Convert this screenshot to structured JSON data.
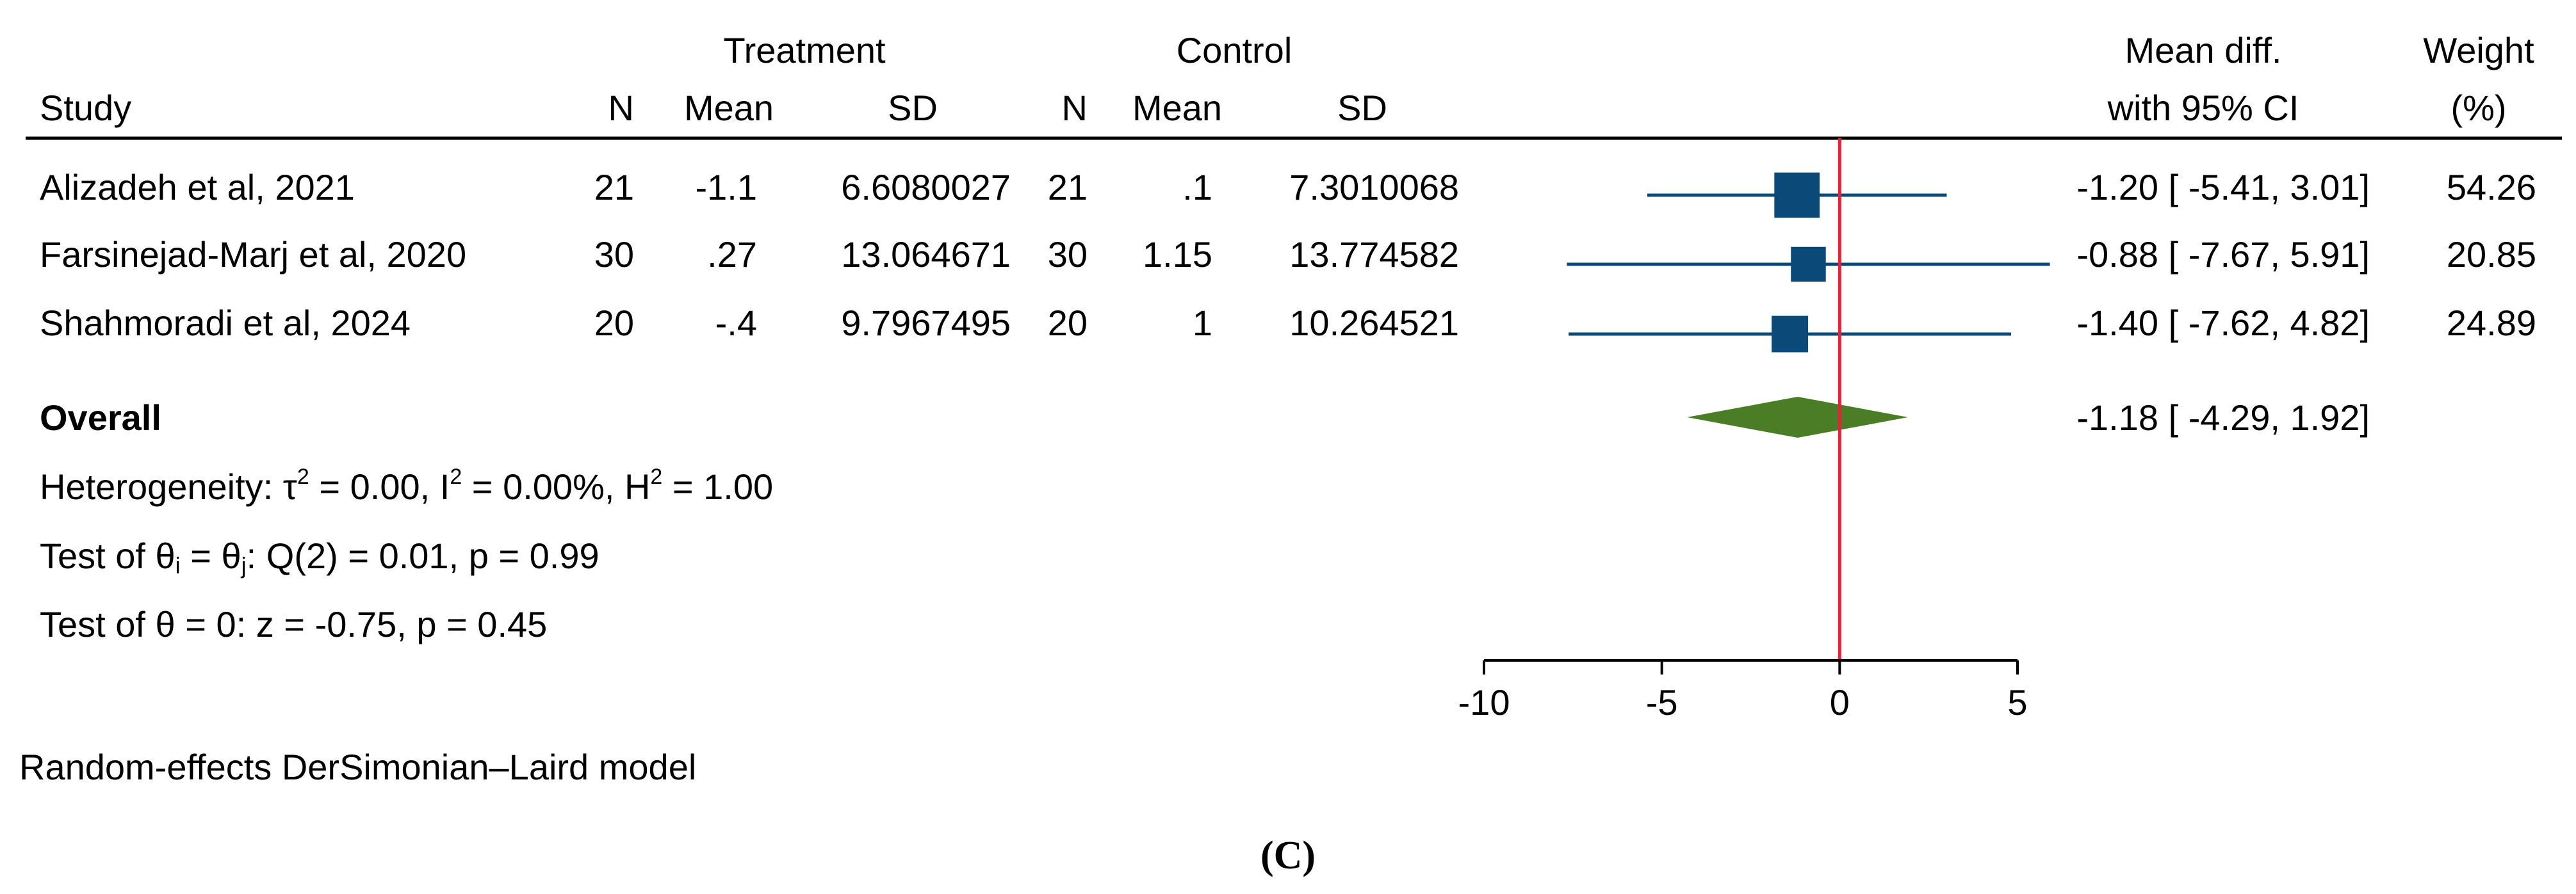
{
  "header": {
    "treatment_group": "Treatment",
    "control_group": "Control",
    "study": "Study",
    "n": "N",
    "mean": "Mean",
    "sd": "SD",
    "effect_line1": "Mean diff.",
    "effect_line2": "with 95% CI",
    "weight_line1": "Weight",
    "weight_line2": "(%)"
  },
  "colors": {
    "study_marker": "#0b4a78",
    "overall_diamond": "#4a7d25",
    "null_line": "#e8213a",
    "text": "#000000"
  },
  "chart_data": {
    "type": "forest",
    "measure": "Mean diff.",
    "xlim": [
      -10,
      5
    ],
    "xticks": [
      -10,
      -5,
      0,
      5
    ],
    "null_value": 0,
    "studies": [
      {
        "study": "Alizadeh et al, 2021",
        "t_n": "21",
        "t_mean": "-1.1",
        "t_sd": "6.6080027",
        "c_n": "21",
        "c_mean": ".1",
        "c_sd": "7.3010068",
        "est": -1.2,
        "lo": -5.41,
        "hi": 3.01,
        "ci_text": "-1.20 [ -5.41,  3.01]",
        "weight": "54.26"
      },
      {
        "study": "Farsinejad-Marj et al, 2020",
        "t_n": "30",
        "t_mean": ".27",
        "t_sd": "13.064671",
        "c_n": "30",
        "c_mean": "1.15",
        "c_sd": "13.774582",
        "est": -0.88,
        "lo": -7.67,
        "hi": 5.91,
        "ci_text": "-0.88 [ -7.67,  5.91]",
        "weight": "20.85"
      },
      {
        "study": "Shahmoradi et al, 2024",
        "t_n": "20",
        "t_mean": "-.4",
        "t_sd": "9.7967495",
        "c_n": "20",
        "c_mean": "1",
        "c_sd": "10.264521",
        "est": -1.4,
        "lo": -7.62,
        "hi": 4.82,
        "ci_text": "-1.40 [ -7.62,  4.82]",
        "weight": "24.89"
      }
    ],
    "overall": {
      "label": "Overall",
      "est": -1.18,
      "lo": -4.29,
      "hi": 1.92,
      "ci_text": "-1.18 [ -4.29,  1.92]"
    },
    "heterogeneity": {
      "prefix": "Heterogeneity: τ",
      "tau": " = 0.00, I",
      "i2": " = 0.00%, H",
      "h2": " = 1.00",
      "sup": "2"
    },
    "test_equal": {
      "prefix": "Test of θ",
      "sub_i": "i",
      "mid": " = θ",
      "sub_j": "j",
      "rest": ": Q(2) = 0.01, p = 0.99"
    },
    "test_zero": "Test of θ = 0: z = -0.75, p = 0.45"
  },
  "footnote": "Random-effects DerSimonian–Laird model",
  "panel_label": "(C)"
}
